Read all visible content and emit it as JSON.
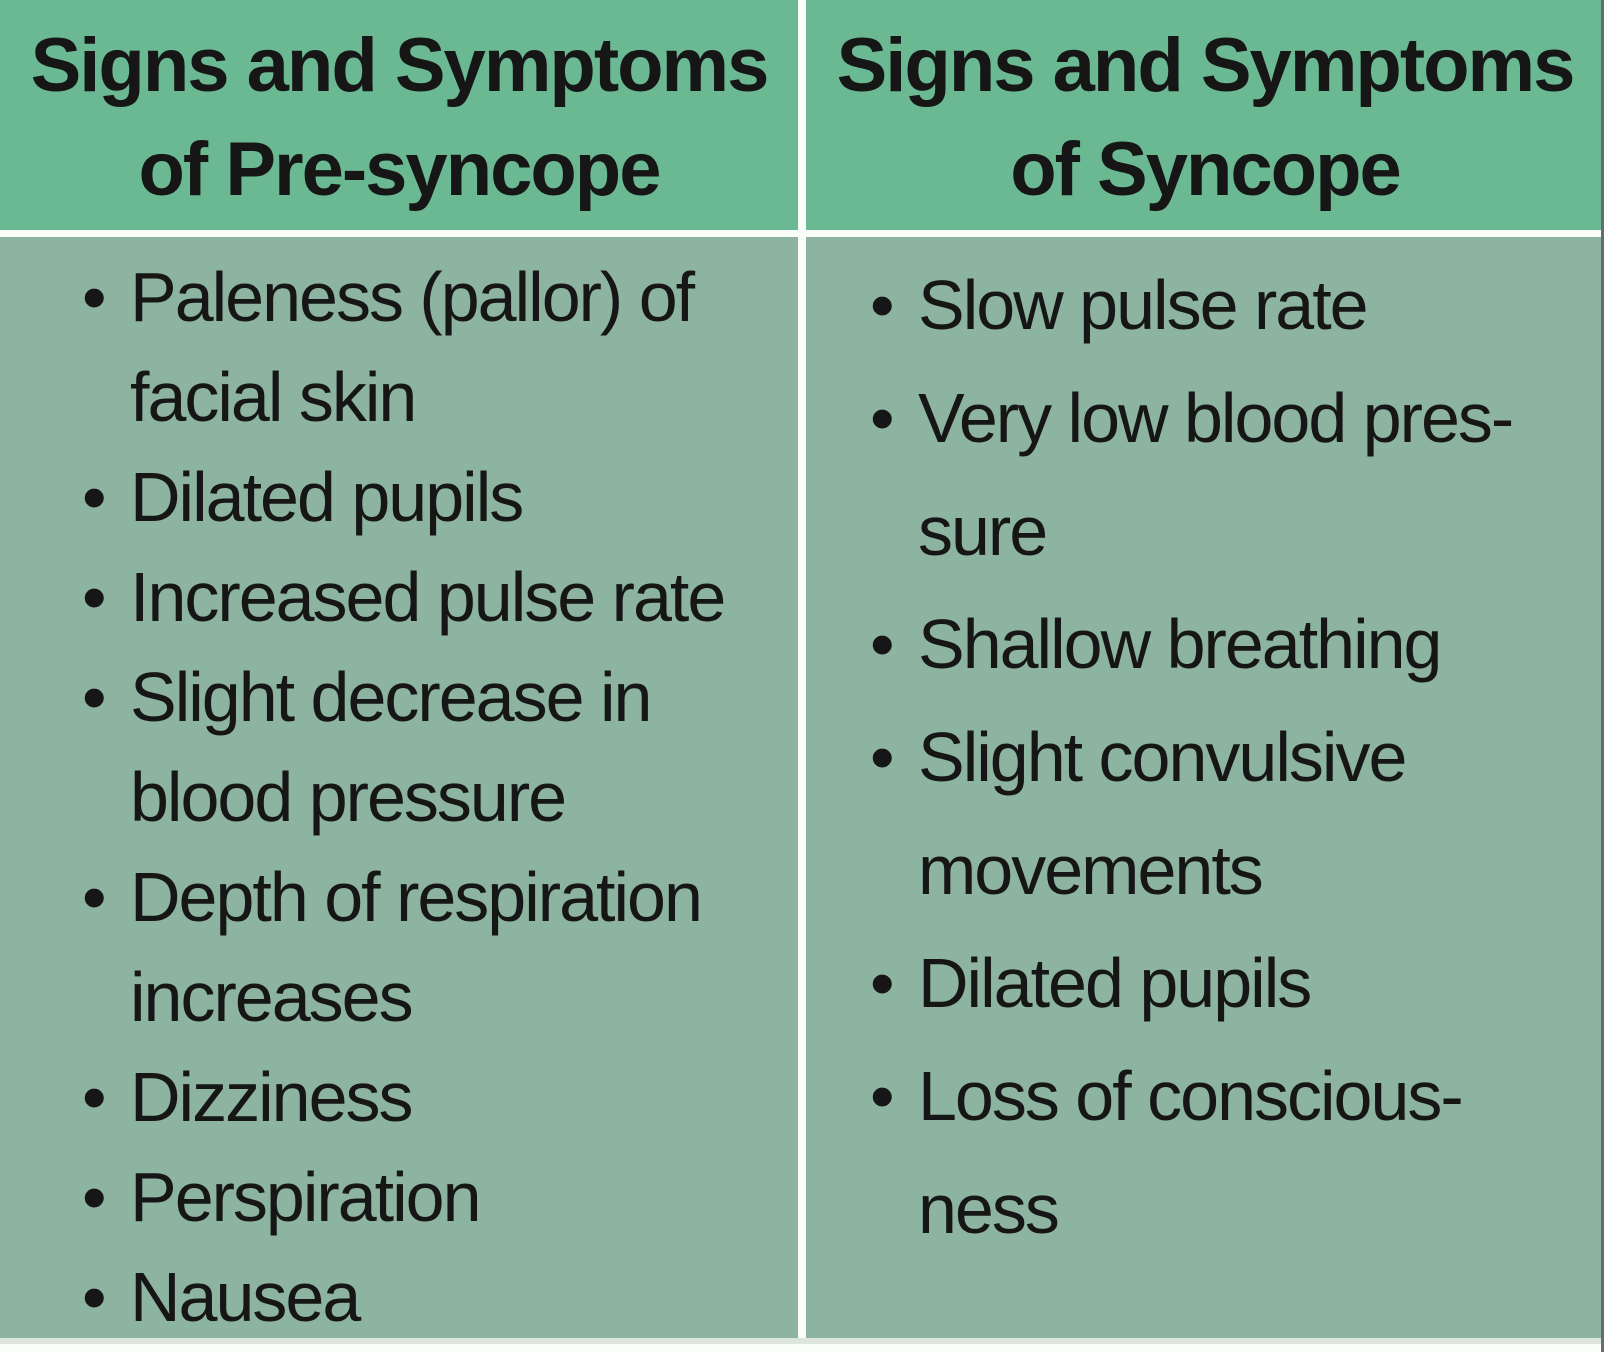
{
  "table": {
    "bullet_char": "•",
    "colors": {
      "header_bg": "#6bb993",
      "body_bg": "#8db3a1",
      "divider": "#fafdfa",
      "text": "#161616",
      "bottom_strip": "#dce4db",
      "right_edge": "#666d6a"
    },
    "columns": [
      {
        "header_lines": [
          "Signs and Symptoms",
          "of Pre-syncope"
        ],
        "items": [
          {
            "lines": [
              "Paleness (pallor) of",
              "facial skin"
            ]
          },
          {
            "lines": [
              "Dilated pupils"
            ]
          },
          {
            "lines": [
              "Increased pulse rate"
            ]
          },
          {
            "lines": [
              "Slight decrease in",
              "blood pressure"
            ]
          },
          {
            "lines": [
              "Depth of respiration",
              "increases"
            ]
          },
          {
            "lines": [
              "Dizziness"
            ]
          },
          {
            "lines": [
              "Perspiration"
            ]
          },
          {
            "lines": [
              "Nausea"
            ]
          }
        ]
      },
      {
        "header_lines": [
          "Signs and Symptoms",
          "of Syncope"
        ],
        "items": [
          {
            "lines": [
              "Slow pulse rate"
            ]
          },
          {
            "lines": [
              "Very low blood pres-",
              "sure"
            ]
          },
          {
            "lines": [
              "Shallow breathing"
            ]
          },
          {
            "lines": [
              "Slight convulsive",
              "movements"
            ]
          },
          {
            "lines": [
              "Dilated pupils"
            ]
          },
          {
            "lines": [
              "Loss of conscious-",
              "ness"
            ]
          }
        ]
      }
    ]
  }
}
